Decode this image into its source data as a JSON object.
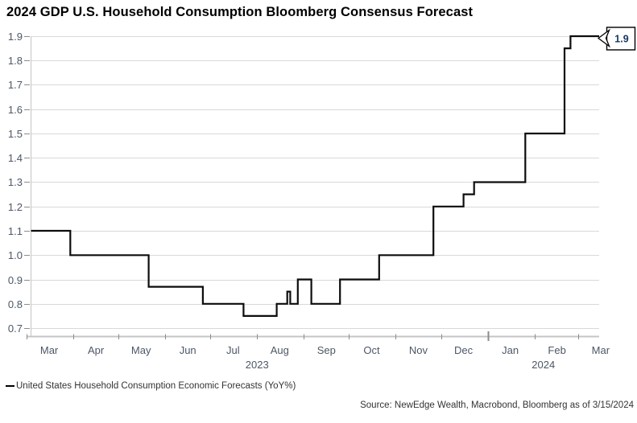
{
  "title": "2024 GDP U.S. Household Consumption Bloomberg Consensus Forecast",
  "legend": {
    "series_label": "United States Household Consumption Economic Forecasts (YoY%)"
  },
  "source": "Source: NewEdge Wealth, Macrobond, Bloomberg  as of 3/15/2024",
  "callout": {
    "label": "1.9"
  },
  "colors": {
    "line": "#0d0d0d",
    "gridline": "#d9d9d9",
    "axis_line": "#c4c4c4",
    "tick": "#8c8c8c",
    "axis_label": "#4d5766",
    "callout_text": "#17365d",
    "title_text": "#000000",
    "footer_text": "#333333"
  },
  "chart_data": {
    "type": "line",
    "subtype": "step",
    "title": "2024 GDP U.S. Household Consumption Bloomberg Consensus Forecast",
    "legend_entry": "United States Household Consumption Economic Forecasts (YoY%)",
    "grid": "horizontal-on",
    "legend_position": "bottom-left",
    "y_axis": {
      "min": 0.7,
      "max": 1.9,
      "tick_step": 0.1,
      "tick_labels": [
        "1.9",
        "1.8",
        "1.7",
        "1.6",
        "1.5",
        "1.4",
        "1.3",
        "1.2",
        "1.1",
        "1.0",
        "0.9",
        "0.8",
        "0.7"
      ]
    },
    "x_axis": {
      "start": "2023-03-01",
      "end": "2024-03-15",
      "months": [
        {
          "label": "Mar",
          "y": 2023,
          "m": 3
        },
        {
          "label": "Apr",
          "y": 2023,
          "m": 4
        },
        {
          "label": "May",
          "y": 2023,
          "m": 5
        },
        {
          "label": "Jun",
          "y": 2023,
          "m": 6
        },
        {
          "label": "Jul",
          "y": 2023,
          "m": 7
        },
        {
          "label": "Aug",
          "y": 2023,
          "m": 8
        },
        {
          "label": "Sep",
          "y": 2023,
          "m": 9
        },
        {
          "label": "Oct",
          "y": 2023,
          "m": 10
        },
        {
          "label": "Nov",
          "y": 2023,
          "m": 11
        },
        {
          "label": "Dec",
          "y": 2023,
          "m": 12
        },
        {
          "label": "Jan",
          "y": 2024,
          "m": 1
        },
        {
          "label": "Feb",
          "y": 2024,
          "m": 2
        },
        {
          "label": "Mar",
          "y": 2024,
          "m": 3
        }
      ],
      "year_labels": [
        "2023",
        "2024"
      ]
    },
    "series": [
      {
        "name": "United States Household Consumption Economic Forecasts (YoY%)",
        "steps": [
          [
            "2023-03-01",
            1.1
          ],
          [
            "2023-03-30",
            1.0
          ],
          [
            "2023-05-21",
            0.87
          ],
          [
            "2023-06-26",
            0.8
          ],
          [
            "2023-07-23",
            0.75
          ],
          [
            "2023-08-14",
            0.8
          ],
          [
            "2023-08-21",
            0.85
          ],
          [
            "2023-08-23",
            0.8
          ],
          [
            "2023-08-28",
            0.9
          ],
          [
            "2023-09-06",
            0.8
          ],
          [
            "2023-09-25",
            0.9
          ],
          [
            "2023-10-21",
            1.0
          ],
          [
            "2023-11-26",
            1.2
          ],
          [
            "2023-12-16",
            1.25
          ],
          [
            "2023-12-23",
            1.3
          ],
          [
            "2024-01-26",
            1.5
          ],
          [
            "2024-02-21",
            1.85
          ],
          [
            "2024-02-25",
            1.9
          ]
        ]
      }
    ],
    "end_value_label": "1.9"
  }
}
